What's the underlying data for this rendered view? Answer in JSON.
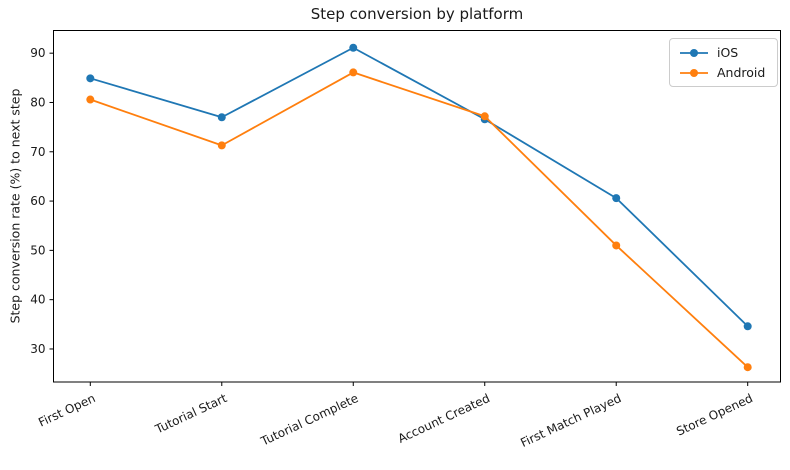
{
  "chart_data": {
    "type": "line",
    "title": "Step conversion by platform",
    "xlabel": "",
    "ylabel": "Step conversion rate (%) to next step",
    "categories": [
      "First Open",
      "Tutorial Start",
      "Tutorial Complete",
      "Account Created",
      "First Match Played",
      "Store Opened"
    ],
    "series": [
      {
        "name": "iOS",
        "color": "#1f77b4",
        "values": [
          84.9,
          77.0,
          91.1,
          76.6,
          60.6,
          34.6
        ]
      },
      {
        "name": "Android",
        "color": "#ff7f0e",
        "values": [
          80.6,
          71.3,
          86.1,
          77.2,
          51.0,
          26.3
        ]
      }
    ],
    "yticks": [
      30,
      40,
      50,
      60,
      70,
      80,
      90
    ],
    "ylim": [
      23.3,
      94.6
    ],
    "grid": false,
    "legend_position": "upper right",
    "marker": "circle",
    "x_tick_rotation_deg": -25
  }
}
